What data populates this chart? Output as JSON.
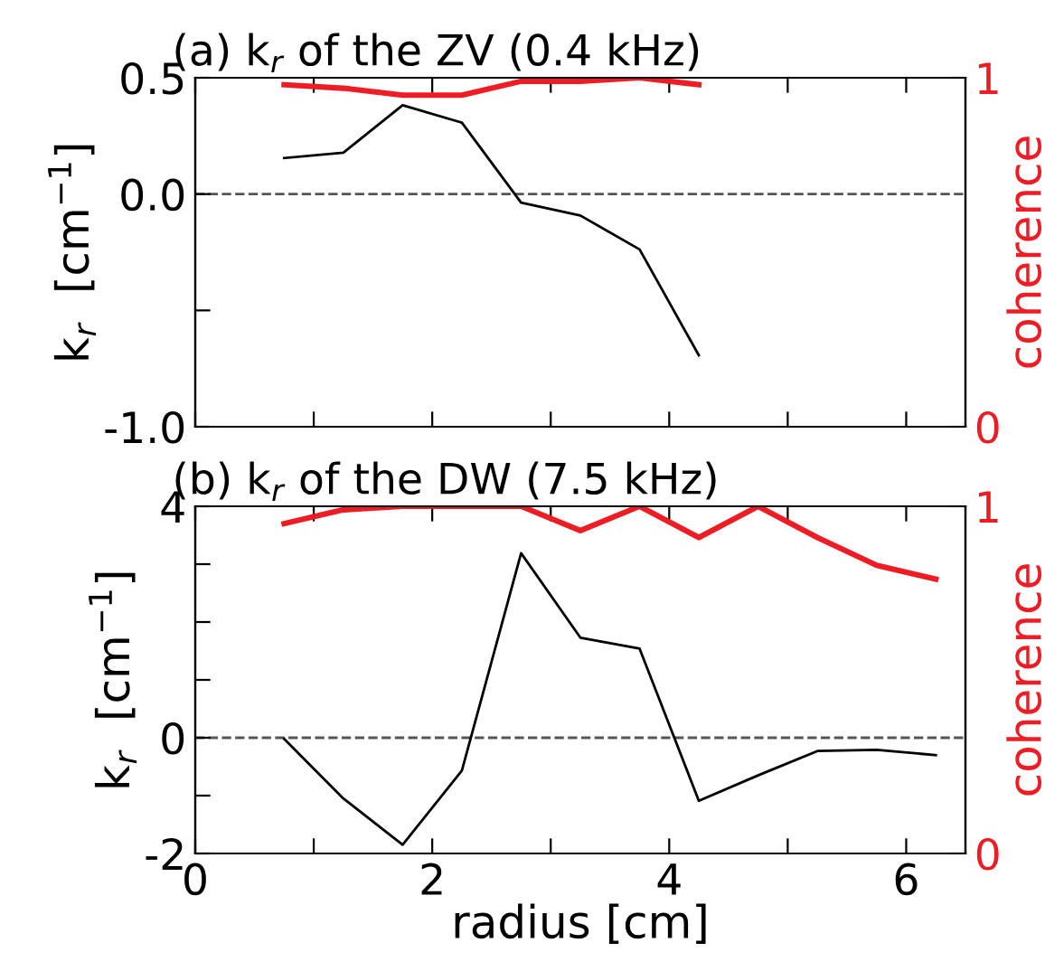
{
  "chart_data": [
    {
      "type": "line",
      "title": "(a) k$_{r}$ of the ZV (0.4 kHz)",
      "ylabel": "k$_{r}$  [cm$^{−1}$]",
      "y2label": "coherence",
      "tick_labels": "y",
      "xlim": [
        0,
        6.5
      ],
      "xticks": [
        {
          "value": 0,
          "label": null
        },
        {
          "value": 1,
          "label": null
        },
        {
          "value": 2,
          "label": null
        },
        {
          "value": 3,
          "label": null
        },
        {
          "value": 4,
          "label": null
        },
        {
          "value": 5,
          "label": null
        },
        {
          "value": 6,
          "label": null
        }
      ],
      "ylim": [
        -1.0,
        0.5
      ],
      "yticks": [
        {
          "value": 0.5,
          "label": "0.5"
        },
        {
          "value": 0,
          "label": "0.0"
        },
        {
          "value": -0.5,
          "label": null
        },
        {
          "value": -1.0,
          "label": "-1.0"
        }
      ],
      "y2lim": [
        0,
        1
      ],
      "y2ticks": [
        0,
        1
      ],
      "ref_lines": [
        {
          "axis": "y",
          "value": 0,
          "color": "#555555",
          "line_style": "dashed"
        }
      ],
      "series": [
        {
          "color": "#000000",
          "x": [
            0.75,
            1.25,
            1.75,
            2.25,
            2.75,
            3.25,
            3.75,
            4.25
          ],
          "values": [
            0.155,
            0.178,
            0.382,
            0.307,
            -0.037,
            -0.092,
            -0.238,
            -0.693
          ]
        },
        {
          "color": "#ee1c25",
          "axis": "y2",
          "x": [
            0.75,
            1.25,
            1.75,
            2.25,
            2.75,
            3.25,
            3.75,
            4.25
          ],
          "values": [
            0.98,
            0.97,
            0.95,
            0.95,
            0.99,
            0.99,
            1.0,
            0.98
          ]
        }
      ]
    },
    {
      "type": "line",
      "title": "(b) k$_{r}$ of the DW (7.5 kHz)",
      "ylabel": "k$_{r}$  [cm$^{−1}$]",
      "y2label": "coherence",
      "xlabel": "radius [cm]",
      "xlim": [
        0,
        6.5
      ],
      "xticks": [
        0,
        {
          "value": 1,
          "label": null
        },
        2,
        {
          "value": 3,
          "label": null
        },
        4,
        {
          "value": 5,
          "label": null
        },
        6
      ],
      "ylim": [
        -2,
        4
      ],
      "yticks": [
        -2,
        {
          "value": -1,
          "label": null
        },
        0,
        {
          "value": 1,
          "label": null
        },
        {
          "value": 2,
          "label": null
        },
        {
          "value": 3,
          "label": null
        },
        4
      ],
      "y2lim": [
        0,
        1
      ],
      "y2ticks": [
        0,
        1
      ],
      "ref_lines": [
        {
          "axis": "y",
          "value": 0,
          "color": "#555555",
          "line_style": "dashed"
        }
      ],
      "series": [
        {
          "color": "#000000",
          "x": [
            0.75,
            1.25,
            1.75,
            2.25,
            2.75,
            3.25,
            3.75,
            4.25,
            4.75,
            5.25,
            5.75,
            6.25
          ],
          "values": [
            -0.02,
            -1.05,
            -1.85,
            -0.57,
            3.19,
            1.73,
            1.54,
            -1.09,
            -0.65,
            -0.23,
            -0.21,
            -0.3
          ]
        },
        {
          "color": "#ee1c25",
          "axis": "y2",
          "x": [
            0.75,
            1.25,
            1.75,
            2.25,
            2.75,
            3.25,
            3.75,
            4.25,
            4.75,
            5.25,
            5.75,
            6.25
          ],
          "values": [
            0.95,
            0.99,
            1.0,
            1.0,
            1.0,
            0.93,
            1.0,
            0.91,
            1.0,
            0.91,
            0.83,
            0.79
          ]
        }
      ]
    }
  ]
}
